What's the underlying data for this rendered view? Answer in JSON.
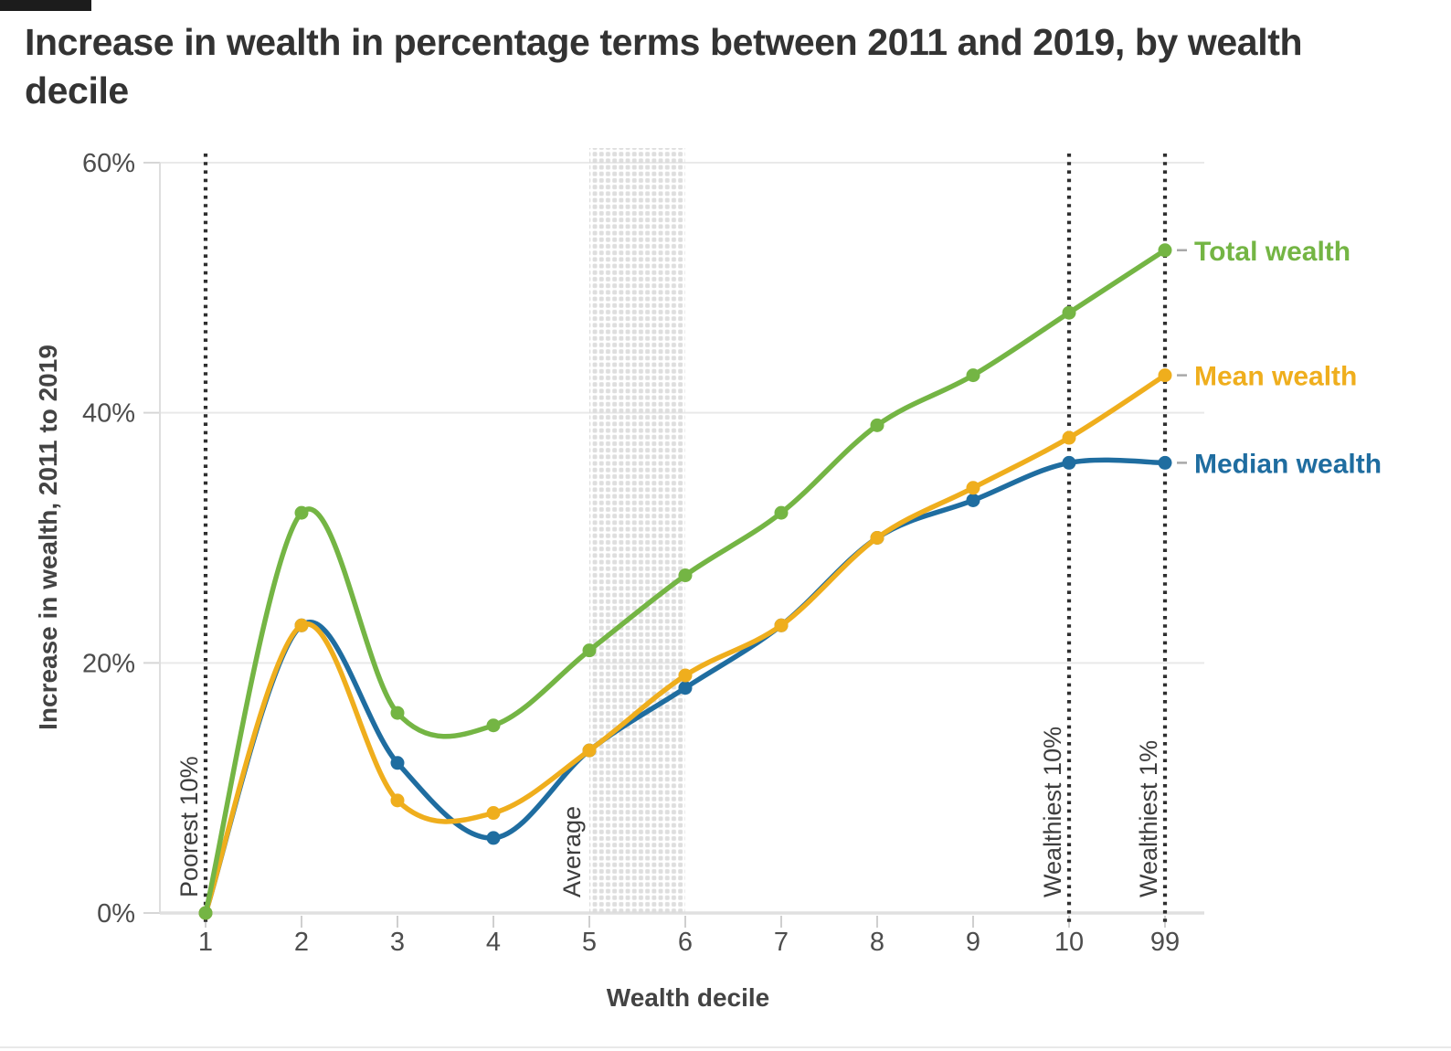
{
  "page": {
    "title": "Increase in wealth in percentage terms between 2011 and 2019, by wealth decile"
  },
  "chart_data": {
    "type": "line",
    "title": "Increase in wealth in percentage terms between 2011 and 2019, by wealth decile",
    "xlabel": "Wealth decile",
    "ylabel": "Increase in wealth, 2011 to 2019",
    "categories": [
      "1",
      "2",
      "3",
      "4",
      "5",
      "6",
      "7",
      "8",
      "9",
      "10",
      "99"
    ],
    "series": [
      {
        "name": "Total wealth",
        "color": "#74b544",
        "values": [
          0,
          32,
          16,
          15,
          21,
          27,
          32,
          39,
          43,
          48,
          53
        ]
      },
      {
        "name": "Mean wealth",
        "color": "#efae1d",
        "values": [
          0,
          23,
          9,
          8,
          13,
          19,
          23,
          30,
          34,
          38,
          43
        ]
      },
      {
        "name": "Median wealth",
        "color": "#1f6da0",
        "values": [
          0,
          23,
          12,
          6,
          13,
          18,
          23,
          30,
          33,
          36,
          36
        ]
      }
    ],
    "ylim": [
      0,
      60
    ],
    "ytick_values": [
      0,
      20,
      40,
      60
    ],
    "ytick_labels": [
      "0%",
      "20%",
      "40%",
      "60%"
    ],
    "grid": "horizontal",
    "legend_position": "right-of-line-ends",
    "annotations": {
      "vlines": [
        {
          "label": "Poorest 10%",
          "category": "1"
        },
        {
          "label": "Wealthiest 10%",
          "category": "10"
        },
        {
          "label": "Wealthiest 1%",
          "category": "99"
        }
      ],
      "band": {
        "label": "Average",
        "from_category": "5",
        "to_category": "6"
      }
    },
    "colors": {
      "gridline": "#e9e9e9",
      "axis_line": "#dedede",
      "tick_mark": "#cfcfcf",
      "dotted_line": "#2f2f2f",
      "hatch": "#dcdcdc",
      "legend_dash": "#a8a8a8"
    }
  }
}
